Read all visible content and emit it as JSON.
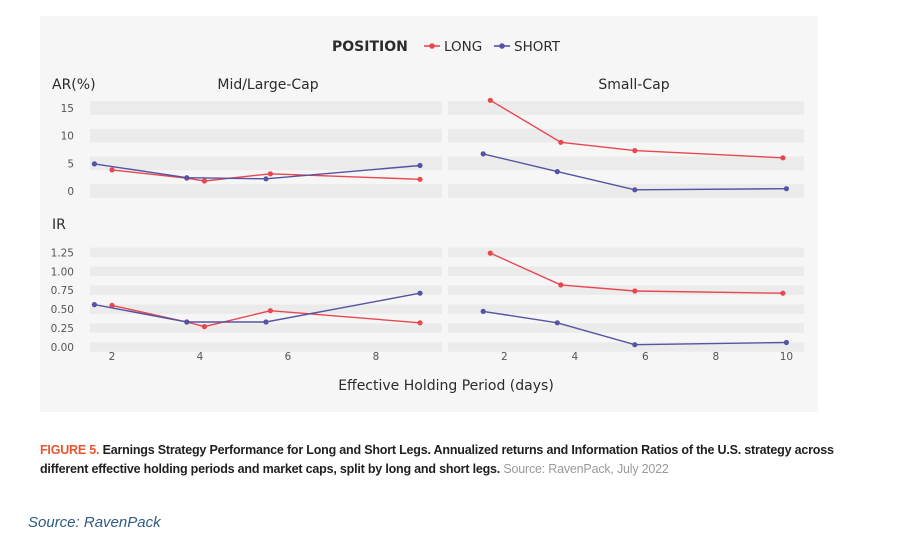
{
  "chart_data": {
    "type": "line",
    "legend": {
      "title": "POSITION",
      "placement": "top-center"
    },
    "series_styles": [
      {
        "name": "LONG",
        "color": "#e8474f"
      },
      {
        "name": "SHORT",
        "color": "#5553a3"
      }
    ],
    "xlabel": "Effective Holding Period (days)",
    "rows": [
      {
        "ylabel": "AR(%)",
        "yticks": [
          "15",
          "10",
          "5",
          "0"
        ],
        "ytick_values": [
          15,
          10,
          5,
          0
        ],
        "ylim": [
          -2,
          17
        ]
      },
      {
        "ylabel": "IR",
        "yticks": [
          "1.25",
          "1.00",
          "0.75",
          "0.50",
          "0.25",
          "0.00"
        ],
        "ytick_values": [
          1.25,
          1.0,
          0.75,
          0.5,
          0.25,
          0.0
        ],
        "ylim": [
          0,
          1.4
        ]
      }
    ],
    "panels": [
      {
        "title": "Mid/Large-Cap",
        "xticks": [
          "2",
          "4",
          "6",
          "8"
        ],
        "xtick_values": [
          2,
          4,
          6,
          8
        ],
        "xlim": [
          1.5,
          9.5
        ],
        "AR": [
          {
            "name": "LONG",
            "x": [
              2.0,
              3.7,
              4.1,
              5.6,
              9.0
            ],
            "y": [
              3.8,
              2.3,
              1.8,
              3.1,
              2.1
            ]
          },
          {
            "name": "SHORT",
            "x": [
              1.6,
              3.7,
              5.5,
              9.0
            ],
            "y": [
              4.9,
              2.4,
              2.2,
              4.6
            ]
          }
        ],
        "IR": [
          {
            "name": "LONG",
            "x": [
              2.0,
              3.7,
              4.1,
              5.6,
              9.0
            ],
            "y": [
              0.55,
              0.33,
              0.27,
              0.48,
              0.32
            ]
          },
          {
            "name": "SHORT",
            "x": [
              1.6,
              3.7,
              5.5,
              9.0
            ],
            "y": [
              0.56,
              0.33,
              0.33,
              0.71
            ]
          }
        ]
      },
      {
        "title": "Small-Cap",
        "xticks": [
          "2",
          "4",
          "6",
          "8",
          "10"
        ],
        "xtick_values": [
          2,
          4,
          6,
          8,
          10
        ],
        "xlim": [
          0.4,
          10.5
        ],
        "AR": [
          {
            "name": "LONG",
            "x": [
              1.6,
              3.6,
              5.7,
              9.9
            ],
            "y": [
              16.4,
              8.8,
              7.3,
              6.0
            ]
          },
          {
            "name": "SHORT",
            "x": [
              1.4,
              3.5,
              5.7,
              10.0
            ],
            "y": [
              6.7,
              3.5,
              0.2,
              0.4
            ]
          }
        ],
        "IR": [
          {
            "name": "LONG",
            "x": [
              1.6,
              3.6,
              5.7,
              9.9
            ],
            "y": [
              1.24,
              0.82,
              0.74,
              0.71
            ]
          },
          {
            "name": "SHORT",
            "x": [
              1.4,
              3.5,
              5.7,
              10.0
            ],
            "y": [
              0.47,
              0.32,
              0.03,
              0.06
            ]
          }
        ]
      }
    ]
  },
  "caption": {
    "figure_label": "FIGURE 5.",
    "text": " Earnings Strategy Performance for Long and Short Legs. Annualized returns and Information Ratios of the U.S. strategy across different effective holding periods and market caps, split by long and short legs.",
    "source": " Source: RavenPack, July 2022"
  },
  "footer": {
    "source": "Source: RavenPack"
  },
  "colors": {
    "panel_bg": "#f7f6f6",
    "band": "#ebebeb",
    "figure_label": "#e8552f"
  }
}
